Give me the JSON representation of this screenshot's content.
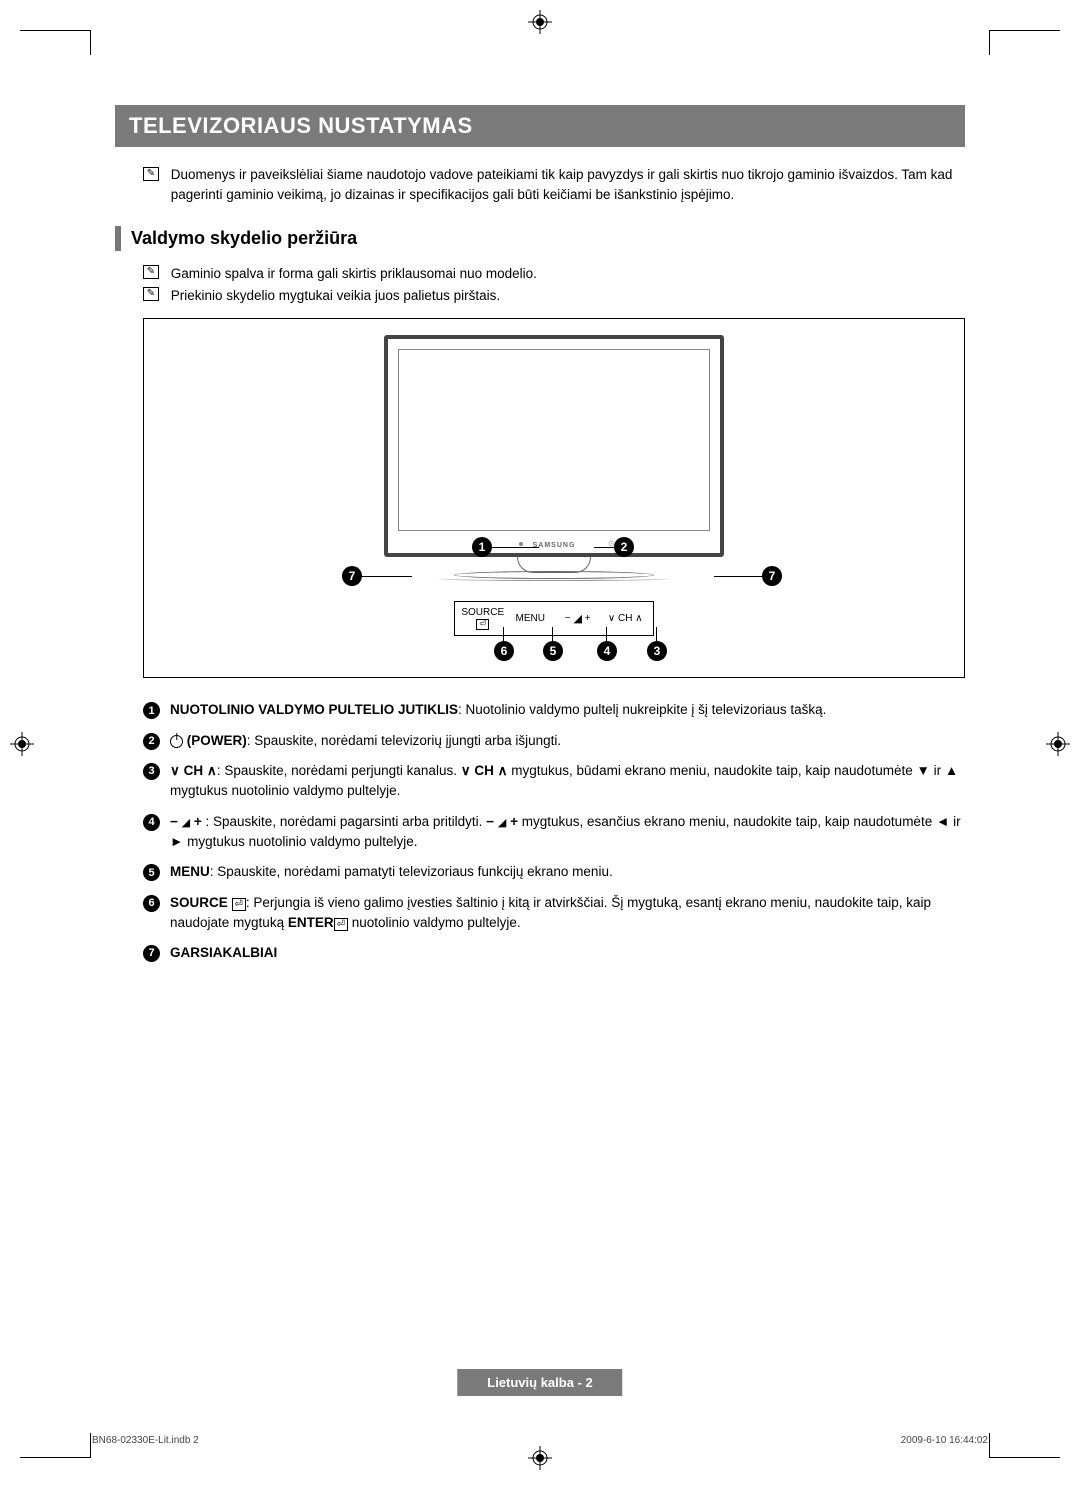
{
  "title": "TELEVIZORIAUS NUSTATYMAS",
  "intro_note": "Duomenys ir paveikslėliai šiame naudotojo vadove pateikiami tik kaip pavyzdys ir gali skirtis nuo tikrojo gaminio išvaizdos. Tam kad pagerinti gaminio veikimą, jo dizainas ir specifikacijos gali būti keičiami be išankstinio įspėjimo.",
  "section_title": "Valdymo skydelio peržiūra",
  "sub_notes": [
    "Gaminio spalva ir forma gali skirtis priklausomai nuo modelio.",
    "Priekinio skydelio mygtukai veikia juos palietus pirštais."
  ],
  "diagram": {
    "logo": "SAMSUNG",
    "panel_labels": {
      "source": "SOURCE",
      "menu": "MENU",
      "vol_minus": "−",
      "vol_plus": "+",
      "ch_down": "∨",
      "ch_up": "∧",
      "ch_text": "CH"
    },
    "callouts": [
      "1",
      "2",
      "3",
      "4",
      "5",
      "6",
      "7"
    ]
  },
  "items": [
    {
      "num": "1",
      "html": "<b>NUOTOLINIO VALDYMO PULTELIO JUTIKLIS</b>: Nuotolinio valdymo pultelį nukreipkite į šį televizoriaus tašką."
    },
    {
      "num": "2",
      "html": "<span class='power-icon'></span> <b>(POWER)</b>: Spauskite, norėdami televizorių įjungti arba išjungti."
    },
    {
      "num": "3",
      "html": "<span class='inline-icon ch-down'></span> <b>CH</b> <span class='inline-icon ch-up'></span>: Spauskite, norėdami perjungti kanalus. <span class='inline-icon ch-down'></span> <b>CH</b> <span class='inline-icon ch-up'></span> mygtukus, būdami ekrano meniu, naudokite taip, kaip naudotumėte ▼ ir ▲ mygtukus nuotolinio valdymo pultelyje."
    },
    {
      "num": "4",
      "html": "<b>−</b> <span class='inline-icon vol-icon'></span> <b>+</b> : Spauskite, norėdami pagarsinti arba pritildyti. <b>−</b> <span class='inline-icon vol-icon'></span> <b>+</b> mygtukus, esančius ekrano meniu, naudokite taip, kaip naudotumėte ◄ ir ► mygtukus nuotolinio valdymo pultelyje."
    },
    {
      "num": "5",
      "html": "<b>MENU</b>: Spauskite, norėdami pamatyti televizoriaus funkcijų ekrano meniu."
    },
    {
      "num": "6",
      "html": "<b>SOURCE</b> <span class='enter-icon'>⏎</span>: Perjungia iš vieno galimo įvesties šaltinio į kitą ir atvirkščiai. Šį mygtuką, esantį ekrano meniu, naudokite taip, kaip naudojate mygtuką <b>ENTER</b><span class='enter-icon'>⏎</span> nuotolinio valdymo pultelyje."
    },
    {
      "num": "7",
      "html": "<b>GARSIAKALBIAI</b>"
    }
  ],
  "page_label": "Lietuvių kalba - 2",
  "footer_left": "BN68-02330E-Lit.indb   2",
  "footer_right": "2009-6-10   16:44:02",
  "note_icon_glyph": "✎"
}
